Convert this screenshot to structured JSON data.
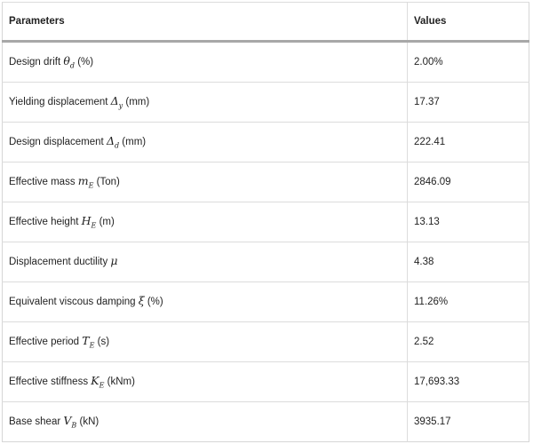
{
  "table": {
    "headers": [
      "Parameters",
      "Values"
    ],
    "rows": [
      {
        "pre": "Design drift ",
        "sym": "θ",
        "sub": "d",
        "post": " (%)",
        "value": "2.00%"
      },
      {
        "pre": "Yielding displacement ",
        "sym": "Δ",
        "sub": "y",
        "post": " (mm)",
        "value": "17.37"
      },
      {
        "pre": "Design displacement ",
        "sym": "Δ",
        "sub": "d",
        "post": " (mm)",
        "value": "222.41"
      },
      {
        "pre": "Effective mass ",
        "sym": "m",
        "sub": "E",
        "post": " (Ton)",
        "value": "2846.09"
      },
      {
        "pre": "Effective height ",
        "sym": "H",
        "sub": "E",
        "post": " (m)",
        "value": "13.13"
      },
      {
        "pre": "Displacement ductility ",
        "sym": "μ",
        "sub": "",
        "post": "",
        "value": "4.38"
      },
      {
        "pre": "Equivalent viscous damping ",
        "sym": "ξ",
        "sub": "",
        "post": " (%)",
        "value": "11.26%"
      },
      {
        "pre": "Effective period ",
        "sym": "T",
        "sub": "E",
        "post": " (s)",
        "value": "2.52"
      },
      {
        "pre": "Effective stiffness ",
        "sym": "K",
        "sub": "E",
        "post": " (kNm)",
        "value": "17,693.33"
      },
      {
        "pre": "Base shear ",
        "sym": "V",
        "sub": "B",
        "post": " (kN)",
        "value": "3935.17"
      }
    ]
  }
}
